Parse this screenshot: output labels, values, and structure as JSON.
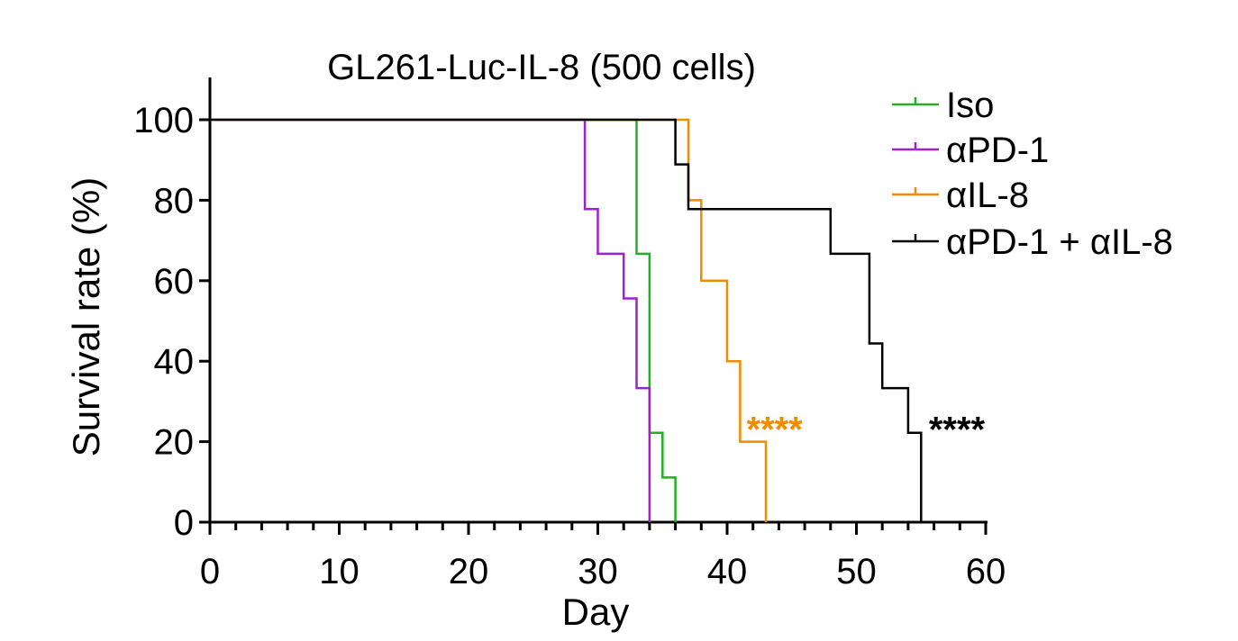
{
  "chart_data": {
    "type": "line",
    "title": "GL261-Luc-IL-8 (500 cells)",
    "xlabel": "Day",
    "ylabel": "Survival rate (%)",
    "xlim": [
      0,
      60
    ],
    "ylim": [
      0,
      100
    ],
    "xticks": [
      "0",
      "10",
      "20",
      "30",
      "40",
      "50",
      "60"
    ],
    "yticks": [
      "0",
      "20",
      "40",
      "60",
      "80",
      "100"
    ],
    "grid": false,
    "legend_position": "top-right",
    "series": [
      {
        "name": "Iso",
        "color": "#22b022",
        "points": [
          [
            0,
            100
          ],
          [
            33,
            100
          ],
          [
            33,
            66.7
          ],
          [
            34,
            66.7
          ],
          [
            34,
            22.2
          ],
          [
            35,
            22.2
          ],
          [
            35,
            11.1
          ],
          [
            36,
            11.1
          ],
          [
            36,
            0
          ]
        ]
      },
      {
        "name": "αPD-1",
        "color": "#a020d0",
        "points": [
          [
            0,
            100
          ],
          [
            29,
            100
          ],
          [
            29,
            77.8
          ],
          [
            30,
            77.8
          ],
          [
            30,
            66.7
          ],
          [
            32,
            66.7
          ],
          [
            32,
            55.6
          ],
          [
            33,
            55.6
          ],
          [
            33,
            33.3
          ],
          [
            34,
            33.3
          ],
          [
            34,
            0
          ]
        ]
      },
      {
        "name": "αIL-8",
        "color": "#f08c00",
        "points": [
          [
            0,
            100
          ],
          [
            37,
            100
          ],
          [
            37,
            80
          ],
          [
            38,
            80
          ],
          [
            38,
            60
          ],
          [
            40,
            60
          ],
          [
            40,
            40
          ],
          [
            41,
            40
          ],
          [
            41,
            20
          ],
          [
            43,
            20
          ],
          [
            43,
            0
          ]
        ]
      },
      {
        "name": "αPD-1 + αIL-8",
        "color": "#000000",
        "points": [
          [
            0,
            100
          ],
          [
            36,
            100
          ],
          [
            36,
            88.9
          ],
          [
            37,
            88.9
          ],
          [
            37,
            77.8
          ],
          [
            48,
            77.8
          ],
          [
            48,
            66.7
          ],
          [
            51,
            66.7
          ],
          [
            51,
            44.4
          ],
          [
            52,
            44.4
          ],
          [
            52,
            33.3
          ],
          [
            54,
            33.3
          ],
          [
            54,
            22.2
          ],
          [
            55,
            22.2
          ],
          [
            55,
            0
          ]
        ]
      }
    ],
    "annotations": [
      {
        "text": "****",
        "color": "#f08c00",
        "x": 41.5,
        "y": 25
      },
      {
        "text": "****",
        "color": "#000000",
        "x": 55.6,
        "y": 25
      }
    ]
  }
}
